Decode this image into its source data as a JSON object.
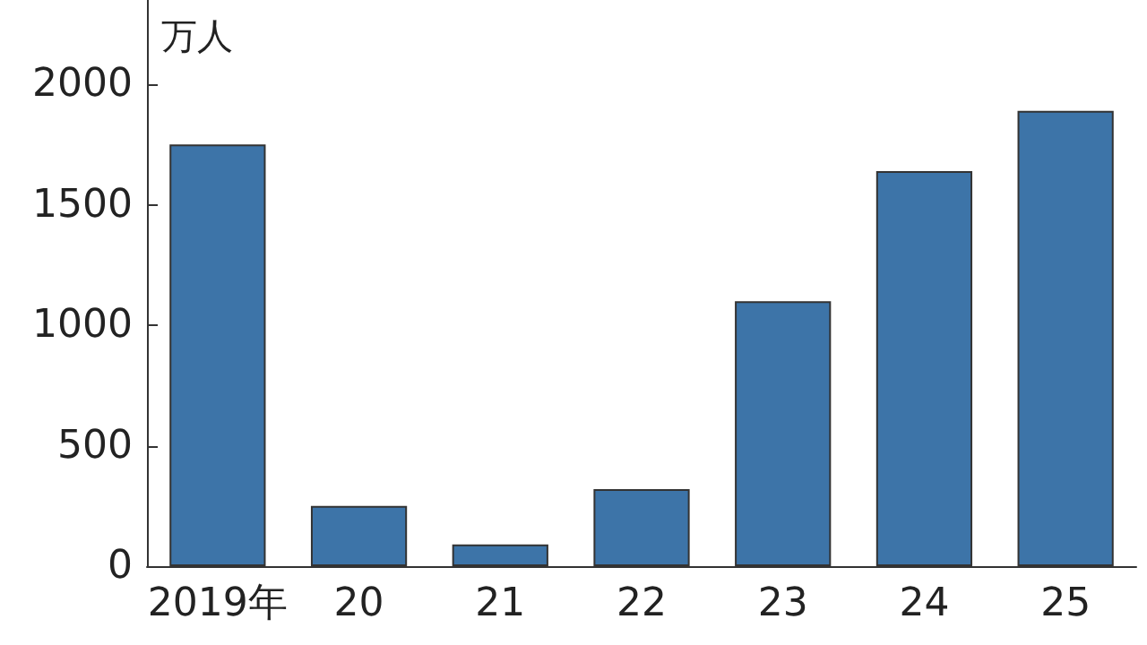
{
  "chart_data": {
    "type": "bar",
    "ylabel": "万人",
    "categories": [
      "2019年",
      "20",
      "21",
      "22",
      "23",
      "24",
      "25"
    ],
    "values": [
      1750,
      250,
      90,
      320,
      1100,
      1640,
      1890
    ],
    "color": "#3d74a8",
    "ylim": [
      0,
      2350
    ],
    "yticks": [
      0,
      500,
      1000,
      1500,
      2000
    ],
    "grid": false
  }
}
